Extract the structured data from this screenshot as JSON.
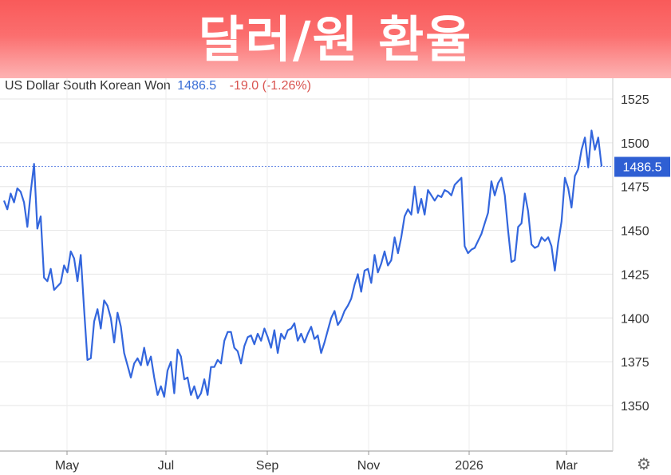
{
  "banner": {
    "title": "달러/원 환율"
  },
  "header": {
    "instrument": "US Dollar South Korean Won",
    "last": "1486.5",
    "change": "-19.0 (-1.26%)"
  },
  "current_marker": {
    "value": 1486.5,
    "label": "1486.5"
  },
  "settings_icon": "gear-icon",
  "colors": {
    "line": "#3366dd",
    "marker_bg": "#2f5fd3",
    "change": "#d9534f",
    "banner": "#f95a5a"
  },
  "chart_data": {
    "type": "line",
    "title": "",
    "xlabel": "",
    "ylabel": "",
    "x_ticks": [
      "May",
      "Jul",
      "Sep",
      "Nov",
      "2026",
      "Mar"
    ],
    "y_ticks": [
      1525,
      1500,
      1475,
      1450,
      1425,
      1400,
      1375,
      1350
    ],
    "y_tick_labels": [
      "1525",
      "1500",
      "1475",
      "1450",
      "1425",
      "1400",
      "1375",
      "1350"
    ],
    "ylim": [
      1325,
      1534
    ],
    "grid": true,
    "legend": "none",
    "series": [
      {
        "values": [
          1467,
          1462,
          1471,
          1466,
          1474,
          1472,
          1466,
          1452,
          1472,
          1488,
          1451,
          1458,
          1423,
          1421,
          1428,
          1416,
          1418,
          1420,
          1430,
          1426,
          1438,
          1434,
          1421,
          1436,
          1405,
          1376,
          1377,
          1398,
          1405,
          1394,
          1410,
          1407,
          1400,
          1386,
          1403,
          1395,
          1380,
          1373,
          1366,
          1374,
          1377,
          1373,
          1383,
          1373,
          1378,
          1366,
          1356,
          1361,
          1355,
          1370,
          1375,
          1357,
          1382,
          1378,
          1365,
          1366,
          1356,
          1361,
          1354,
          1357,
          1365,
          1356,
          1372,
          1372,
          1376,
          1374,
          1387,
          1392,
          1392,
          1383,
          1381,
          1374,
          1384,
          1389,
          1390,
          1385,
          1391,
          1387,
          1394,
          1389,
          1383,
          1393,
          1380,
          1391,
          1388,
          1393,
          1394,
          1397,
          1387,
          1391,
          1386,
          1391,
          1395,
          1388,
          1390,
          1380,
          1386,
          1393,
          1400,
          1404,
          1396,
          1399,
          1404,
          1407,
          1411,
          1419,
          1425,
          1415,
          1427,
          1428,
          1420,
          1436,
          1426,
          1431,
          1438,
          1430,
          1433,
          1446,
          1437,
          1446,
          1458,
          1462,
          1459,
          1475,
          1460,
          1468,
          1459,
          1473,
          1470,
          1467,
          1470,
          1469,
          1473,
          1472,
          1470,
          1476,
          1478,
          1480,
          1441,
          1437,
          1439,
          1440,
          1444,
          1448,
          1454,
          1460,
          1478,
          1470,
          1477,
          1480,
          1470,
          1450,
          1432,
          1433,
          1452,
          1454,
          1471,
          1461,
          1442,
          1440,
          1441,
          1446,
          1444,
          1446,
          1441,
          1427,
          1443,
          1455,
          1480,
          1474,
          1463,
          1481,
          1485,
          1496,
          1503,
          1486,
          1507,
          1496,
          1503,
          1486.5
        ]
      }
    ]
  }
}
